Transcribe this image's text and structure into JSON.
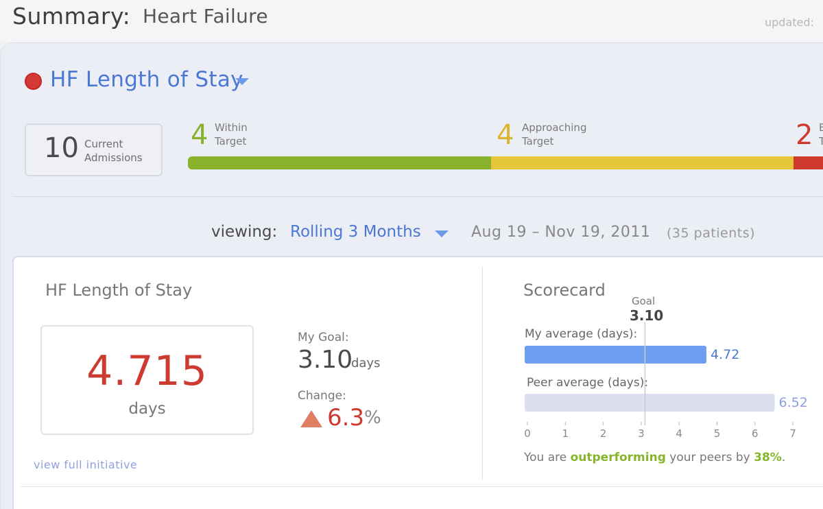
{
  "header": {
    "title": "Summary:",
    "subtitle": "Heart Failure",
    "updated_label": "updated:"
  },
  "metric": {
    "title": "HF Length of Stay",
    "status_color": "#d33a36"
  },
  "admissions": {
    "count": "10",
    "label_line1": "Current",
    "label_line2": "Admissions"
  },
  "segments": [
    {
      "count": "4",
      "line1": "Within",
      "line2": "Target",
      "color": "#88b22b"
    },
    {
      "count": "4",
      "line1": "Approaching",
      "line2": "Target",
      "color": "#e5c53a"
    },
    {
      "count": "2",
      "line1": "B",
      "line2": "T",
      "color": "#cf3a2e"
    }
  ],
  "viewing": {
    "label": "viewing:",
    "value": "Rolling 3 Months",
    "date_range": "Aug 19 – Nov 19, 2011",
    "patients": "(35 patients)"
  },
  "stay_card": {
    "title": "HF Length of Stay",
    "value": "4.715",
    "unit": "days",
    "goal_label": "My Goal:",
    "goal_value": "3.10",
    "goal_unit": "days",
    "change_label": "Change:",
    "change_value": "6.3",
    "change_pct": "%",
    "link": "view full initiative"
  },
  "scorecard": {
    "title": "Scorecard",
    "goal_label": "Goal",
    "goal_value": "3.10",
    "my_label": "My average (days):",
    "peer_label": "Peer average (days):",
    "sentence_pre": "You are ",
    "sentence_highlight": "outperforming",
    "sentence_mid": " your peers by ",
    "sentence_pct": "38%",
    "sentence_post": "."
  },
  "chart_data": {
    "type": "bar",
    "orientation": "horizontal",
    "categories": [
      "My average (days):",
      "Peer average (days):"
    ],
    "values": [
      4.72,
      6.52
    ],
    "value_labels": [
      "4.72",
      "6.52"
    ],
    "colors": [
      "#6d9ef0",
      "#dcdff0"
    ],
    "goal": 3.1,
    "xlim": [
      0,
      7
    ],
    "xticks": [
      "0",
      "1",
      "2",
      "3",
      "4",
      "5",
      "6",
      "7"
    ]
  }
}
